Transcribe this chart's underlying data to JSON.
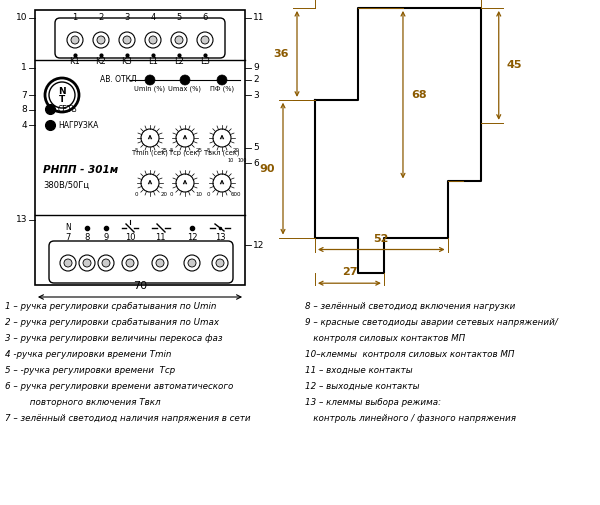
{
  "bg_color": "#ffffff",
  "blk": "#000000",
  "ora": "#8B5A00",
  "legend_left": [
    "1 – ручка регулировки срабатывания по Umin",
    "2 – ручка регулировки срабатывания по Umax",
    "3 – ручка регулировки величины перекоса фаз",
    "4 -ручка регулировки времени Tmin",
    "5 – -ручка регулировки времени  Тср",
    "6 – ручка регулировки времени автоматического",
    "         повторного включения Твкл",
    "7 – зелённый светодиод наличия напряжения в сети"
  ],
  "legend_right": [
    "8 – зелённый светодиод включения нагрузки",
    "9 – красные светодиоды аварии сетевых напряжений/",
    "   контроля силовых контактов МП",
    "10–клеммы  контроля силовых контактов МП",
    "11 – входные контакты",
    "12 – выходные контакты",
    "13 – клеммы выбора режима:",
    "   контроль линейного / фазного напряжения"
  ]
}
